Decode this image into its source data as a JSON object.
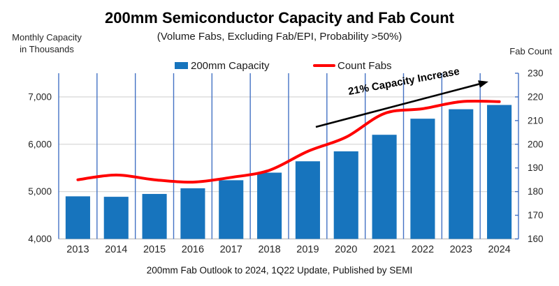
{
  "header": {
    "title": "200mm Semiconductor Capacity and Fab Count",
    "subtitle": "(Volume Fabs, Excluding Fab/EPI, Probability >50%)"
  },
  "axis_titles": {
    "left_line1": "Monthly Capacity",
    "left_line2": "in Thousands",
    "right": "Fab Count"
  },
  "legend": [
    {
      "label": "200mm Capacity",
      "swatch": "bar",
      "color": "#1774BD"
    },
    {
      "label": "Count Fabs",
      "swatch": "line",
      "color": "#FF0000"
    }
  ],
  "annotation": {
    "text": "21% Capacity Increase"
  },
  "caption": "200mm Fab Outlook to 2024, 1Q22 Update, Published by SEMI",
  "colors": {
    "bar": "#1774BD",
    "line": "#FF0000",
    "vertical_grid": "#4472C4",
    "horizontal_grid": "#D9D9D9",
    "baseline": "#BFBFBF",
    "right_axis": "#4472C4",
    "tick_text": "#262626",
    "arrow": "#000000"
  },
  "chart_data": {
    "type": "bar",
    "combo": "bar+line",
    "title": "200mm Semiconductor Capacity and Fab Count",
    "subtitle": "(Volume Fabs, Excluding Fab/EPI, Probability >50%)",
    "categories": [
      "2013",
      "2014",
      "2015",
      "2016",
      "2017",
      "2018",
      "2019",
      "2020",
      "2021",
      "2022",
      "2023",
      "2024"
    ],
    "series": [
      {
        "name": "200mm Capacity",
        "type": "bar",
        "axis": "left",
        "values": [
          4900,
          4890,
          4950,
          5070,
          5240,
          5400,
          5640,
          5850,
          6200,
          6540,
          6740,
          6830
        ]
      },
      {
        "name": "Count Fabs",
        "type": "line",
        "axis": "right",
        "values": [
          185,
          187,
          185,
          184,
          186,
          189,
          197,
          203,
          213,
          215,
          218,
          218
        ]
      }
    ],
    "left_axis": {
      "label": "Monthly Capacity in Thousands",
      "min": 4000,
      "max": 7500,
      "tick_values": [
        4000,
        5000,
        6000,
        7000
      ],
      "tick_labels": [
        "4,000",
        "5,000",
        "6,000",
        "7,000"
      ]
    },
    "right_axis": {
      "label": "Fab Count",
      "min": 160,
      "max": 230,
      "tick_values": [
        160,
        170,
        180,
        190,
        200,
        210,
        220,
        230
      ],
      "tick_labels": [
        "160",
        "170",
        "180",
        "190",
        "200",
        "210",
        "220",
        "230"
      ]
    },
    "gridlines": {
      "horizontal": true,
      "vertical": true
    },
    "legend_position": "top",
    "annotation": {
      "text": "21% Capacity Increase",
      "arrow_from_category": "2019",
      "arrow_to_category": "2024"
    }
  }
}
